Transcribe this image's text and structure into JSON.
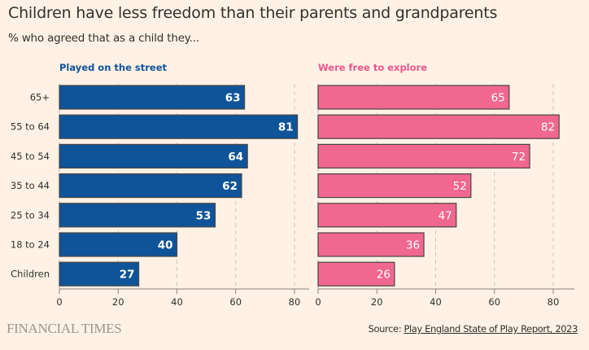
{
  "header": {
    "title": "Children have less freedom than their parents and grandparents",
    "subtitle": "% who agreed that as a child they..."
  },
  "footer": {
    "brand": "FINANCIAL TIMES",
    "source_prefix": "Source: ",
    "source_link": "Play England State of Play Report, 2023"
  },
  "colors": {
    "background": "#FFF1E5",
    "series1": "#0F5499",
    "series2": "#F0678F",
    "series1_label": "#0F5499",
    "series2_label": "#E8578A"
  },
  "chart_data": [
    {
      "type": "bar",
      "orientation": "horizontal",
      "title": "Played on the street",
      "categories": [
        "65+",
        "55 to 64",
        "45 to 54",
        "35 to 44",
        "25 to 34",
        "18 to 24",
        "Children"
      ],
      "values": [
        63,
        81,
        64,
        62,
        53,
        40,
        27
      ],
      "xlim": [
        0,
        85
      ],
      "xticks": [
        0,
        20,
        40,
        60,
        80
      ],
      "grid": true,
      "data_labels": true
    },
    {
      "type": "bar",
      "orientation": "horizontal",
      "title": "Were free to explore",
      "categories": [
        "65+",
        "55 to 64",
        "45 to 54",
        "35 to 44",
        "25 to 34",
        "18 to 24",
        "Children"
      ],
      "values": [
        65,
        82,
        72,
        52,
        47,
        36,
        26
      ],
      "xlim": [
        0,
        85
      ],
      "xticks": [
        0,
        20,
        40,
        60,
        80
      ],
      "grid": true,
      "data_labels": true
    }
  ]
}
